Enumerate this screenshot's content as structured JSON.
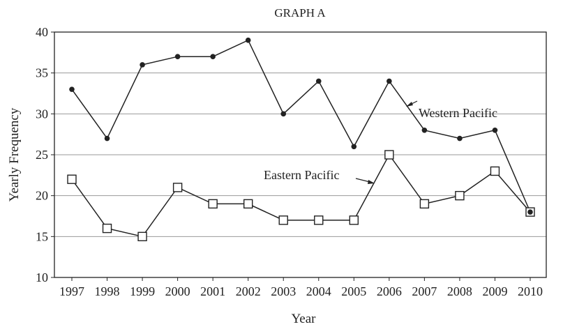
{
  "chart_data": {
    "type": "line",
    "title": "GRAPH A",
    "xlabel": "Year",
    "ylabel": "Yearly Frequency",
    "x": [
      1997,
      1998,
      1999,
      2000,
      2001,
      2002,
      2003,
      2004,
      2005,
      2006,
      2007,
      2008,
      2009,
      2010
    ],
    "ylim": [
      10,
      40
    ],
    "yticks": [
      10,
      15,
      20,
      25,
      30,
      35,
      40
    ],
    "grid": true,
    "series": [
      {
        "name": "Western Pacific",
        "marker": "filled-circle",
        "values": [
          33,
          27,
          36,
          37,
          37,
          39,
          30,
          34,
          26,
          34,
          28,
          27,
          28,
          18
        ]
      },
      {
        "name": "Eastern Pacific",
        "marker": "open-square",
        "values": [
          22,
          16,
          15,
          21,
          19,
          19,
          17,
          17,
          17,
          25,
          19,
          20,
          23,
          18
        ]
      }
    ],
    "annotations": [
      "Western Pacific",
      "Eastern Pacific"
    ],
    "colors": {
      "line": "#222222",
      "grid": "#9a9a9a"
    }
  }
}
